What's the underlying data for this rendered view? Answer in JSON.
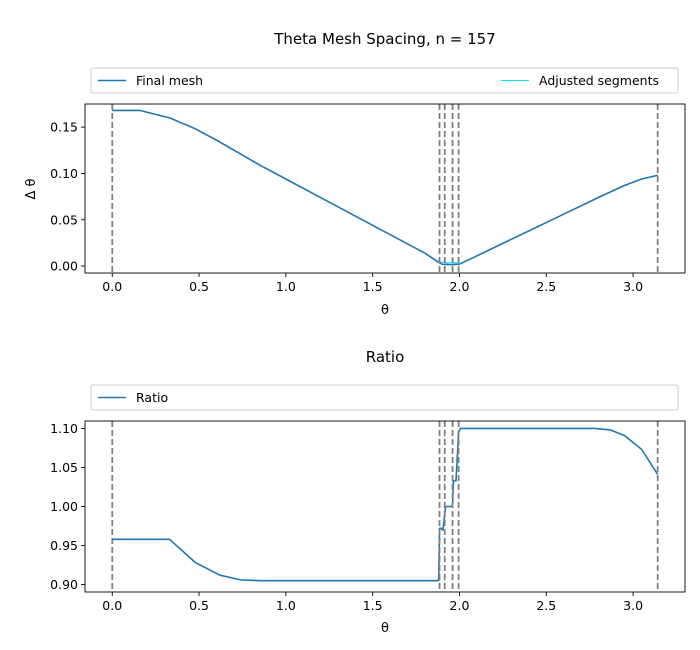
{
  "chart_data": [
    {
      "type": "line",
      "title": "Theta Mesh Spacing, n = 157",
      "xlabel": "θ",
      "ylabel": "Δ θ",
      "xlim": [
        -0.157,
        3.299
      ],
      "ylim": [
        -0.0075,
        0.175
      ],
      "xticks": [
        "0.0",
        "0.5",
        "1.0",
        "1.5",
        "2.0",
        "2.5",
        "3.0"
      ],
      "xtick_values": [
        0,
        0.5,
        1.0,
        1.5,
        2.0,
        2.5,
        3.0
      ],
      "yticks": [
        "0.00",
        "0.05",
        "0.10",
        "0.15"
      ],
      "ytick_values": [
        0,
        0.05,
        0.1,
        0.15
      ],
      "grid": false,
      "legend_position": "above plot, full width",
      "vlines": [
        0.0,
        1.885,
        1.915,
        1.96,
        1.995,
        3.1416
      ],
      "series": [
        {
          "name": "Final mesh",
          "color": "#1f77b4",
          "x": [
            0.0,
            0.16,
            0.33,
            0.47,
            0.6,
            0.73,
            0.86,
            1.0,
            1.2,
            1.4,
            1.6,
            1.8,
            1.88,
            1.9,
            1.95,
            2.0,
            2.2,
            2.4,
            2.6,
            2.8,
            2.95,
            3.05,
            3.1416
          ],
          "y": [
            0.168,
            0.168,
            0.16,
            0.149,
            0.136,
            0.122,
            0.108,
            0.094,
            0.074,
            0.054,
            0.034,
            0.014,
            0.004,
            0.002,
            0.0015,
            0.002,
            0.02,
            0.038,
            0.056,
            0.074,
            0.087,
            0.094,
            0.098
          ]
        },
        {
          "name": "Adjusted segments",
          "color": "#00e5ff",
          "x": [
            1.88,
            1.9,
            1.93,
            1.96,
            1.99,
            2.0
          ],
          "y": [
            0.0045,
            0.0042,
            0.0035,
            0.0035,
            0.0035,
            0.004
          ]
        }
      ]
    },
    {
      "type": "line",
      "title": "Ratio",
      "xlabel": "θ",
      "ylabel": "",
      "xlim": [
        -0.157,
        3.299
      ],
      "ylim": [
        0.8905,
        1.1095
      ],
      "xticks": [
        "0.0",
        "0.5",
        "1.0",
        "1.5",
        "2.0",
        "2.5",
        "3.0"
      ],
      "xtick_values": [
        0,
        0.5,
        1.0,
        1.5,
        2.0,
        2.5,
        3.0
      ],
      "yticks": [
        "0.90",
        "0.95",
        "1.00",
        "1.05",
        "1.10"
      ],
      "ytick_values": [
        0.9,
        0.95,
        1.0,
        1.05,
        1.1
      ],
      "grid": false,
      "legend_position": "above plot, full width",
      "vlines": [
        0.0,
        1.885,
        1.915,
        1.96,
        1.995,
        3.1416
      ],
      "series": [
        {
          "name": "Ratio",
          "color": "#1f77b4",
          "x": [
            0.0,
            0.33,
            0.48,
            0.62,
            0.74,
            0.86,
            1.5,
            1.88,
            1.885,
            1.895,
            1.9,
            1.905,
            1.92,
            1.925,
            1.96,
            1.965,
            1.98,
            1.995,
            2.005,
            2.1,
            2.5,
            2.78,
            2.87,
            2.95,
            3.05,
            3.1416
          ],
          "y": [
            0.958,
            0.958,
            0.928,
            0.912,
            0.906,
            0.905,
            0.905,
            0.905,
            0.972,
            0.972,
            0.97,
            0.97,
            1.0,
            1.0,
            1.0,
            1.033,
            1.033,
            1.095,
            1.1,
            1.1,
            1.1,
            1.1,
            1.098,
            1.091,
            1.073,
            1.041
          ]
        }
      ]
    }
  ]
}
